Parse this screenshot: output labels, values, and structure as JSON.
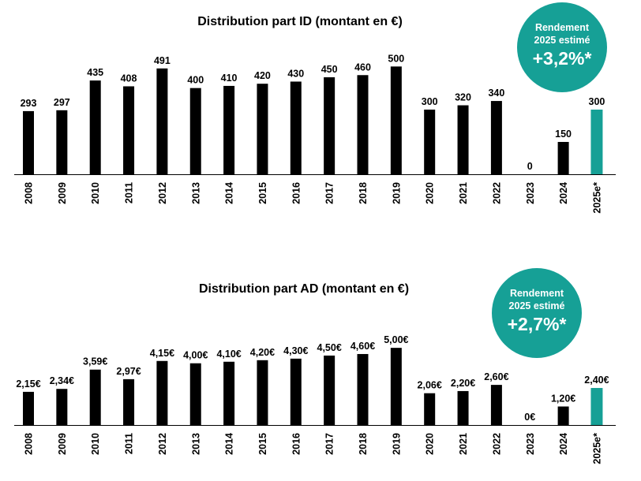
{
  "colors": {
    "bar": "#000000",
    "highlight": "#16a096",
    "badge": "#16a096",
    "axis": "#000000"
  },
  "chart_data": [
    {
      "type": "bar",
      "title": "Distribution part ID (montant en €)",
      "categories": [
        "2008",
        "2009",
        "2010",
        "2011",
        "2012",
        "2013",
        "2014",
        "2015",
        "2016",
        "2017",
        "2018",
        "2019",
        "2020",
        "2021",
        "2022",
        "2023",
        "2024",
        "2025e*"
      ],
      "values": [
        293,
        297,
        435,
        408,
        491,
        400,
        410,
        420,
        430,
        450,
        460,
        500,
        300,
        320,
        340,
        0,
        150,
        300
      ],
      "labels": [
        "293",
        "297",
        "435",
        "408",
        "491",
        "400",
        "410",
        "420",
        "430",
        "450",
        "460",
        "500",
        "300",
        "320",
        "340",
        "0",
        "150",
        "300"
      ],
      "highlight_index": 17,
      "ylim": [
        0,
        600
      ],
      "xlabel": "",
      "ylabel": "",
      "badge": {
        "line1": "Rendement",
        "line2": "2025 estimé",
        "value": "+3,2%*"
      }
    },
    {
      "type": "bar",
      "title": "Distribution part AD (montant en €)",
      "categories": [
        "2008",
        "2009",
        "2010",
        "2011",
        "2012",
        "2013",
        "2014",
        "2015",
        "2016",
        "2017",
        "2018",
        "2019",
        "2020",
        "2021",
        "2022",
        "2023",
        "2024",
        "2025e*"
      ],
      "values": [
        2.15,
        2.34,
        3.59,
        2.97,
        4.15,
        4.0,
        4.1,
        4.2,
        4.3,
        4.5,
        4.6,
        5.0,
        2.06,
        2.2,
        2.6,
        0,
        1.2,
        2.4
      ],
      "labels": [
        "2,15€",
        "2,34€",
        "3,59€",
        "2,97€",
        "4,15€",
        "4,00€",
        "4,10€",
        "4,20€",
        "4,30€",
        "4,50€",
        "4,60€",
        "5,00€",
        "2,06€",
        "2,20€",
        "2,60€",
        "0€",
        "1,20€",
        "2,40€"
      ],
      "highlight_index": 17,
      "ylim": [
        0,
        7
      ],
      "xlabel": "",
      "ylabel": "",
      "badge": {
        "line1": "Rendement",
        "line2": "2025 estimé",
        "value": "+2,7%*"
      }
    }
  ]
}
